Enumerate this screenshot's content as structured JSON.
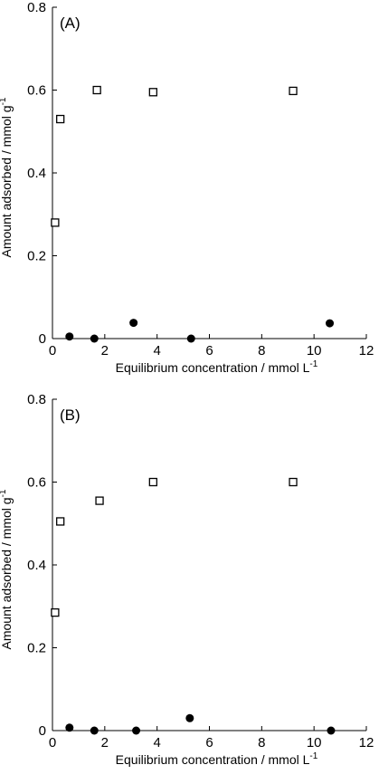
{
  "chart_data": [
    {
      "type": "scatter",
      "panel_label": "(A)",
      "xlabel": "Equilibrium concentration / mmol L",
      "xlabel_sup": "-1",
      "ylabel": "Amount adsorbed / mmol g",
      "ylabel_sup": "-1",
      "xlim": [
        0,
        12
      ],
      "ylim": [
        0,
        0.8
      ],
      "x_ticks": [
        0,
        2,
        4,
        6,
        8,
        10,
        12
      ],
      "y_ticks": [
        0,
        0.2,
        0.4,
        0.6,
        0.8
      ],
      "grid": false,
      "series": [
        {
          "marker": "open-square",
          "color": "#000000",
          "points": [
            [
              0.1,
              0.28
            ],
            [
              0.3,
              0.53
            ],
            [
              1.7,
              0.6
            ],
            [
              3.85,
              0.595
            ],
            [
              9.2,
              0.598
            ]
          ]
        },
        {
          "marker": "filled-circle",
          "color": "#000000",
          "points": [
            [
              0.65,
              0.005
            ],
            [
              1.6,
              0.0
            ],
            [
              3.1,
              0.038
            ],
            [
              5.3,
              0.0
            ],
            [
              10.6,
              0.037
            ]
          ]
        }
      ]
    },
    {
      "type": "scatter",
      "panel_label": "(B)",
      "xlabel": "Equilibrium concentration / mmol L",
      "xlabel_sup": "-1",
      "ylabel": "Amount adsorbed / mmol g",
      "ylabel_sup": "-1",
      "xlim": [
        0,
        12
      ],
      "ylim": [
        0,
        0.8
      ],
      "x_ticks": [
        0,
        2,
        4,
        6,
        8,
        10,
        12
      ],
      "y_ticks": [
        0,
        0.2,
        0.4,
        0.6,
        0.8
      ],
      "grid": false,
      "series": [
        {
          "marker": "open-square",
          "color": "#000000",
          "points": [
            [
              0.1,
              0.285
            ],
            [
              0.3,
              0.505
            ],
            [
              1.8,
              0.555
            ],
            [
              3.85,
              0.6
            ],
            [
              9.2,
              0.6
            ]
          ]
        },
        {
          "marker": "filled-circle",
          "color": "#000000",
          "points": [
            [
              0.65,
              0.007
            ],
            [
              1.6,
              0.0
            ],
            [
              3.2,
              0.0
            ],
            [
              5.25,
              0.03
            ],
            [
              10.65,
              0.0
            ]
          ]
        }
      ]
    }
  ]
}
